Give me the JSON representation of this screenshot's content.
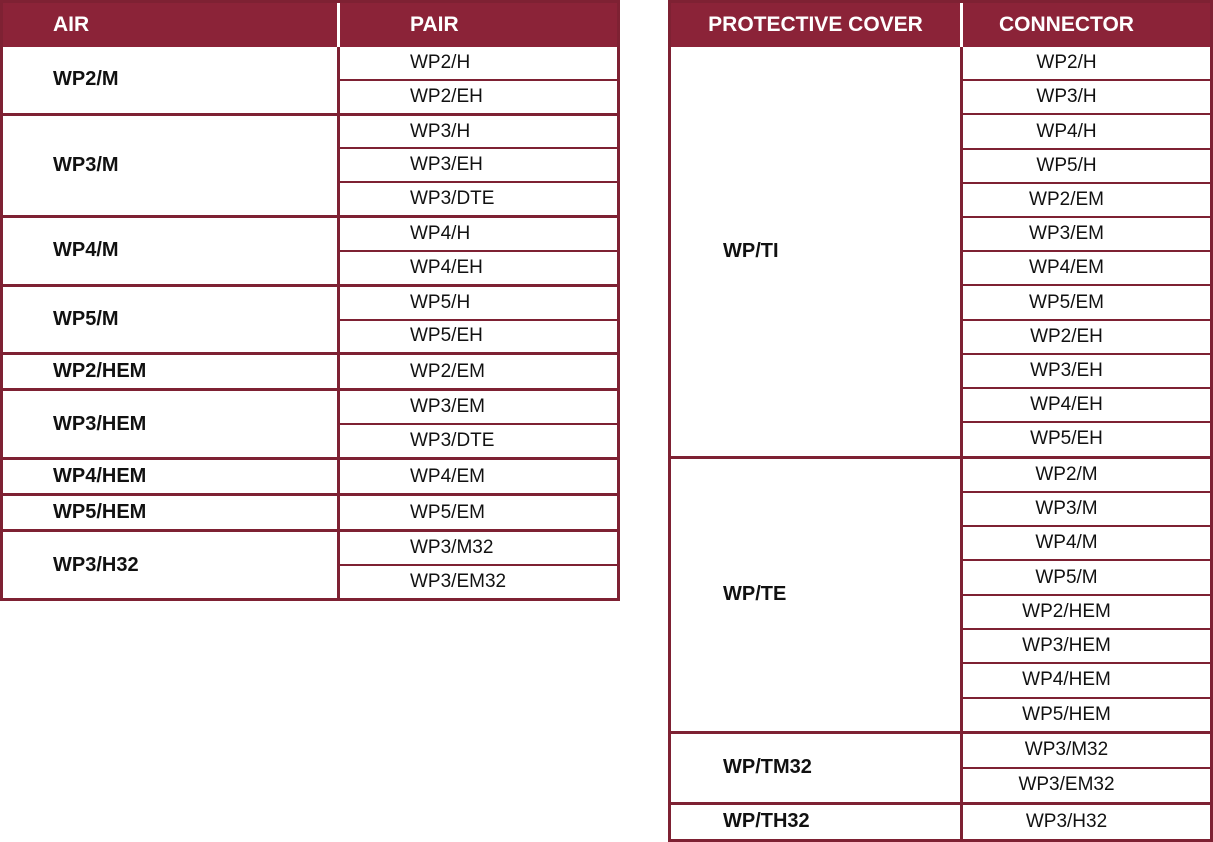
{
  "colors": {
    "maroon": "#8B2338",
    "line": "#7E2133",
    "header_text": "#FFFFFF",
    "text": "#111111",
    "background": "#FFFFFF"
  },
  "left_table": {
    "headers": [
      "AIR",
      "PAIR"
    ],
    "groups": [
      {
        "label": "WP2/M",
        "items": [
          "WP2/H",
          "WP2/EH"
        ]
      },
      {
        "label": "WP3/M",
        "items": [
          "WP3/H",
          "WP3/EH",
          "WP3/DTE"
        ]
      },
      {
        "label": "WP4/M",
        "items": [
          "WP4/H",
          "WP4/EH"
        ]
      },
      {
        "label": "WP5/M",
        "items": [
          "WP5/H",
          "WP5/EH"
        ]
      },
      {
        "label": "WP2/HEM",
        "items": [
          "WP2/EM"
        ]
      },
      {
        "label": "WP3/HEM",
        "items": [
          "WP3/EM",
          "WP3/DTE"
        ]
      },
      {
        "label": "WP4/HEM",
        "items": [
          "WP4/EM"
        ]
      },
      {
        "label": "WP5/HEM",
        "items": [
          "WP5/EM"
        ]
      },
      {
        "label": "WP3/H32",
        "items": [
          "WP3/M32",
          "WP3/EM32"
        ]
      }
    ]
  },
  "right_table": {
    "headers": [
      "PROTECTIVE COVER",
      "CONNECTOR"
    ],
    "groups": [
      {
        "label": "WP/TI",
        "items": [
          "WP2/H",
          "WP3/H",
          "WP4/H",
          "WP5/H",
          "WP2/EM",
          "WP3/EM",
          "WP4/EM",
          "WP5/EM",
          "WP2/EH",
          "WP3/EH",
          "WP4/EH",
          "WP5/EH"
        ]
      },
      {
        "label": "WP/TE",
        "items": [
          "WP2/M",
          "WP3/M",
          "WP4/M",
          "WP5/M",
          "WP2/HEM",
          "WP3/HEM",
          "WP4/HEM",
          "WP5/HEM"
        ]
      },
      {
        "label": "WP/TM32",
        "items": [
          "WP3/M32",
          "WP3/EM32"
        ]
      },
      {
        "label": "WP/TH32",
        "items": [
          "WP3/H32"
        ]
      }
    ]
  }
}
